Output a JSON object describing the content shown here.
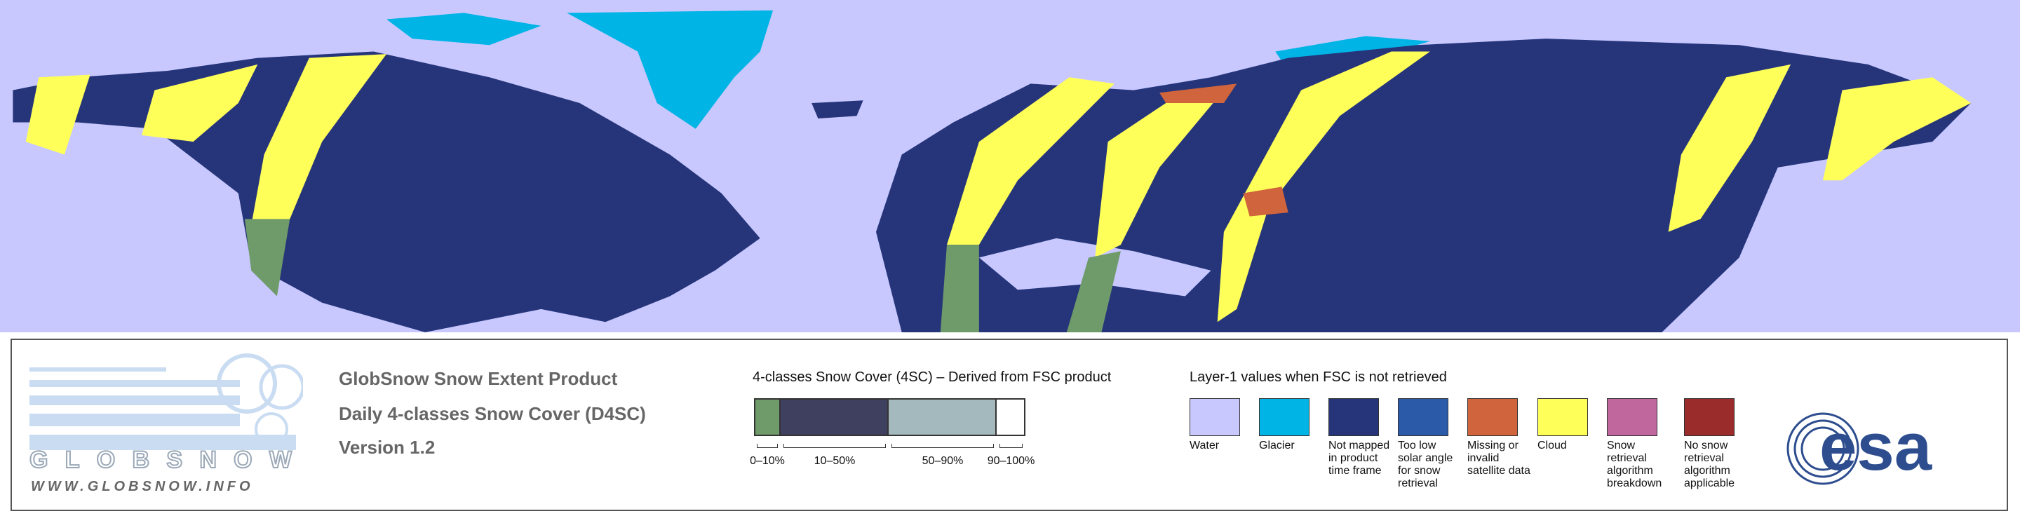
{
  "logo": {
    "text": "GLOBSNOW",
    "url": "WWW.GLOBSNOW.INFO"
  },
  "product": {
    "lines": [
      "GlobSnow Snow Extent Product",
      "Daily 4-classes Snow Cover (D4SC)",
      "Version 1.2"
    ]
  },
  "snow_cover_legend": {
    "title": "4-classes Snow Cover (4SC) – Derived from FSC product",
    "classes": [
      {
        "label": "0–10%",
        "color": "#6f9a6a"
      },
      {
        "label": "10–50%",
        "color": "#3f3f5f"
      },
      {
        "label": "50–90%",
        "color": "#a3b9bd"
      },
      {
        "label": "90–100%",
        "color": "#ffffff"
      }
    ]
  },
  "layer1_legend": {
    "title": "Layer-1 values when FSC is not retrieved",
    "items": [
      {
        "label": "Water",
        "color": "#c8c8ff"
      },
      {
        "label": "Glacier",
        "color": "#00b4e6"
      },
      {
        "label": "Not mapped in product time frame",
        "color": "#26357a"
      },
      {
        "label": "Too low solar angle for snow retrieval",
        "color": "#2b5ba8"
      },
      {
        "label": "Missing or invalid satellite data",
        "color": "#d0643c"
      },
      {
        "label": "Cloud",
        "color": "#ffff5a"
      },
      {
        "label": "Snow retrieval algorithm breakdown",
        "color": "#c0679e"
      },
      {
        "label": "No snow retrieval algorithm applicable",
        "color": "#9b2c2c"
      }
    ]
  },
  "esa": {
    "text": "esa"
  }
}
